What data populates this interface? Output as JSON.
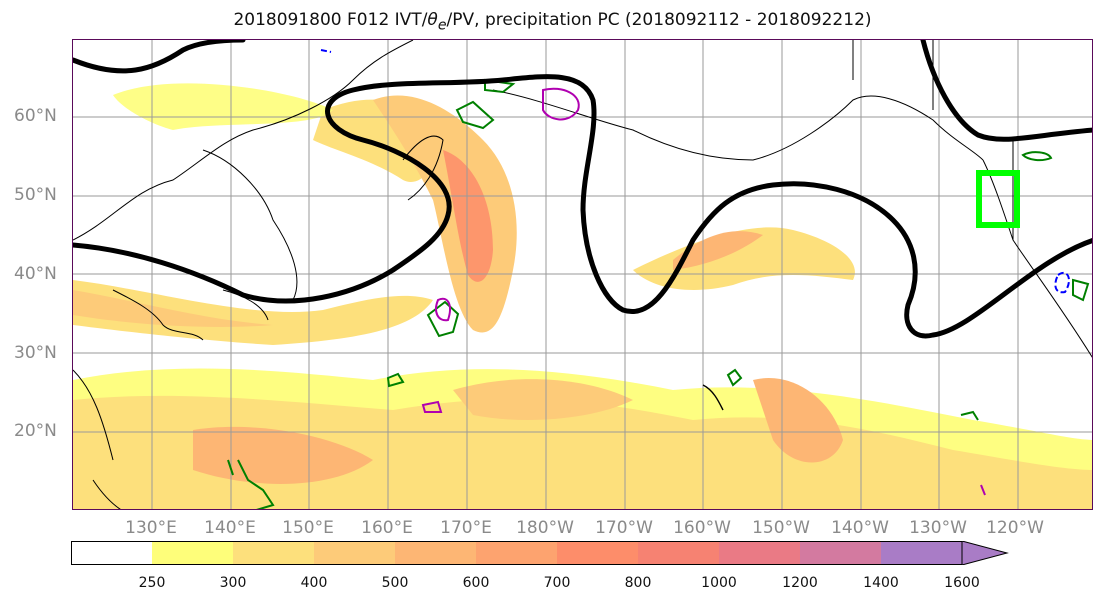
{
  "title_prefix": "2018091800 F012 IVT/",
  "title_symbol": "θ",
  "title_sub": "e",
  "title_suffix": "/PV, precipitation PC (2018092112 - 2018092212)",
  "lat_labels": [
    "60°N",
    "50°N",
    "40°N",
    "30°N",
    "20°N"
  ],
  "lon_labels": [
    "130°E",
    "140°E",
    "150°E",
    "160°E",
    "170°E",
    "180°W",
    "170°W",
    "160°W",
    "150°W",
    "140°W",
    "130°W",
    "120°W"
  ],
  "colorbar": {
    "labels": [
      "250",
      "300",
      "400",
      "500",
      "600",
      "700",
      "800",
      "1000",
      "1200",
      "1400",
      "1600"
    ],
    "colors": [
      "#ffffff",
      "#fefe7a",
      "#fde07c",
      "#fdcb79",
      "#fdb674",
      "#fda36f",
      "#fd8d6a",
      "#f68272",
      "#ea7a85",
      "#d37aa0",
      "#a97cc6"
    ]
  },
  "highlight_box_color": "#00ff00",
  "contour_colors": {
    "pv": "#008000",
    "theta": "#b000b0",
    "ivt_line": "#000000",
    "neg": "#0000ff"
  }
}
